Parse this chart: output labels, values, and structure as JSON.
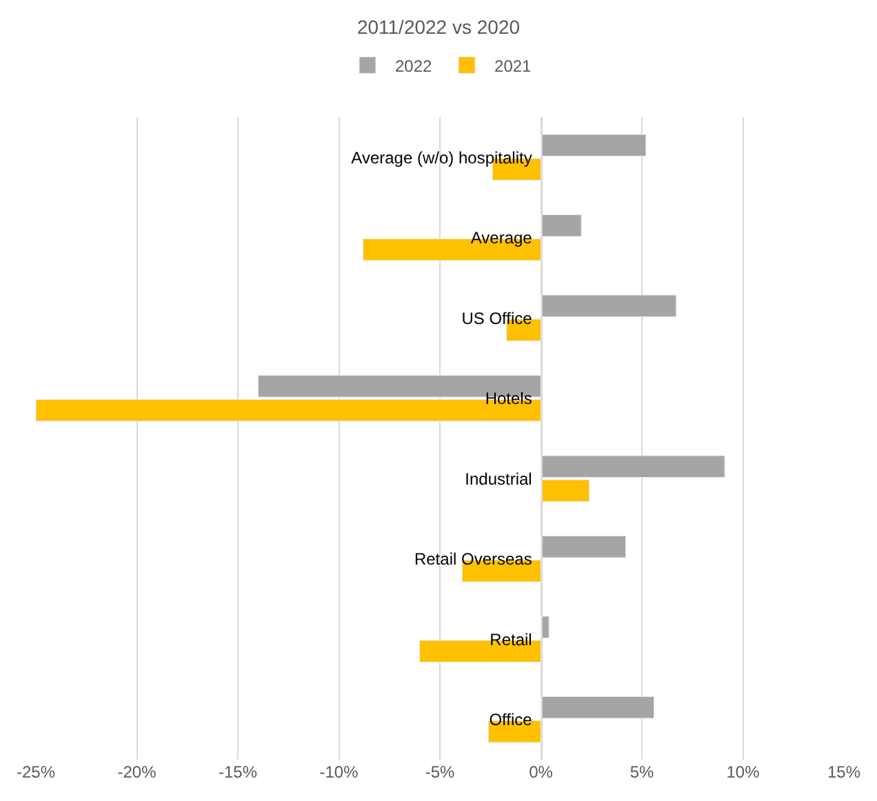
{
  "chart_data": {
    "type": "bar",
    "orientation": "horizontal",
    "title": "2011/2022 vs 2020",
    "categories": [
      "Average (w/o) hospitality",
      "Average",
      "US Office",
      "Hotels",
      "Industrial",
      "Retail Overseas",
      "Retail",
      "Office"
    ],
    "series": [
      {
        "name": "2022",
        "color": "#a5a5a5",
        "values": [
          5.2,
          2.0,
          6.7,
          -14.0,
          9.1,
          4.2,
          0.4,
          5.6
        ]
      },
      {
        "name": "2021",
        "color": "#ffc000",
        "values": [
          -2.4,
          -8.8,
          -1.7,
          -25.0,
          2.4,
          -3.9,
          -6.0,
          -2.6
        ]
      }
    ],
    "xlim": [
      -25,
      15
    ],
    "xticks": [
      {
        "value": -25,
        "label": "-25%"
      },
      {
        "value": -20,
        "label": "-20%"
      },
      {
        "value": -15,
        "label": "-15%"
      },
      {
        "value": -10,
        "label": "-10%"
      },
      {
        "value": -5,
        "label": "-5%"
      },
      {
        "value": 0,
        "label": "0%"
      },
      {
        "value": 5,
        "label": "5%"
      },
      {
        "value": 10,
        "label": "10%"
      },
      {
        "value": 15,
        "label": "15%"
      }
    ],
    "grid": "x",
    "legend": "top"
  }
}
